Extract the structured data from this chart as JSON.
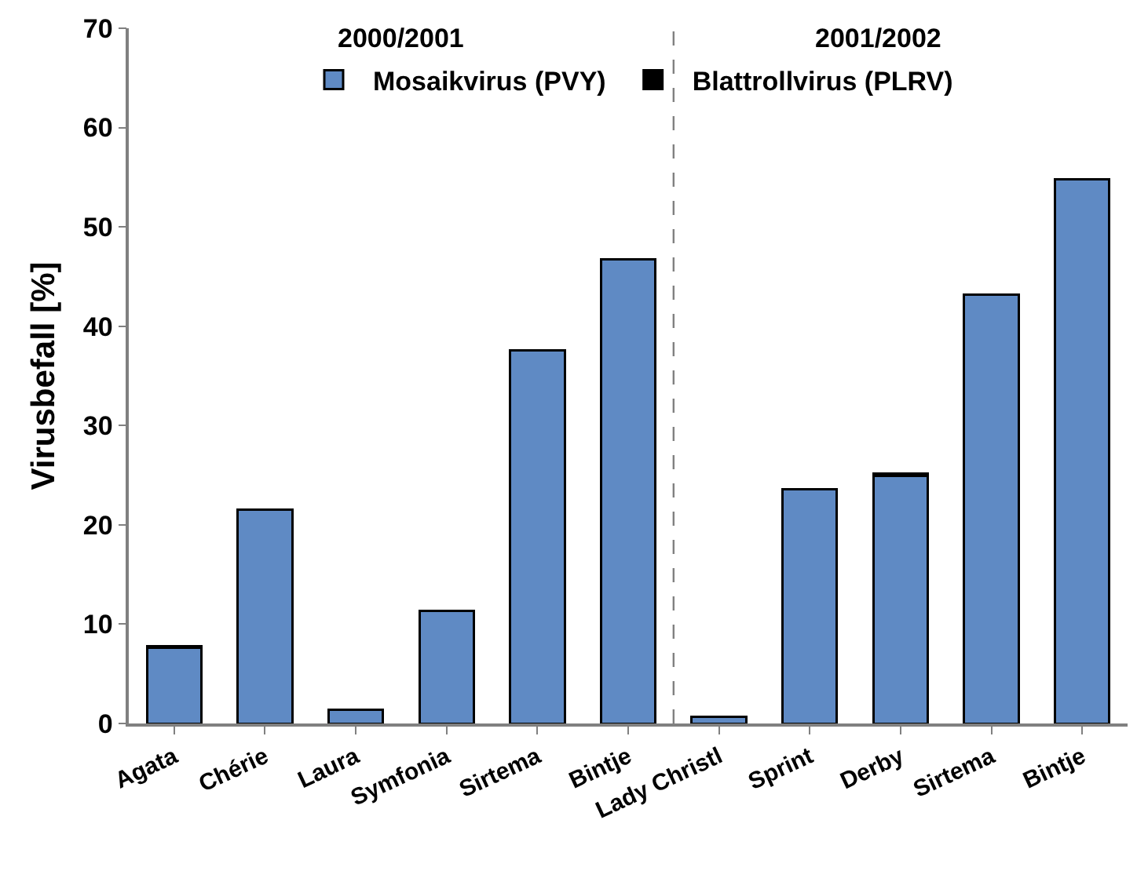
{
  "chart_data": {
    "type": "bar",
    "stacked": true,
    "ylabel": "Virusbefall [%]",
    "categories": [
      "Agata",
      "Chérie",
      "Laura",
      "Symfonia",
      "Sirtema",
      "Bintje",
      "Lady Christl",
      "Sprint",
      "Derby",
      "Sirtema",
      "Bintje"
    ],
    "series": [
      {
        "name": "Mosaikvirus (PVY)",
        "color": "#5f8ac4",
        "values": [
          7.6,
          21.5,
          1.4,
          11.3,
          37.6,
          46.7,
          0.7,
          23.6,
          24.9,
          43.2,
          54.8
        ]
      },
      {
        "name": "Blattrollvirus (PLRV)",
        "color": "#000000",
        "values": [
          0.2,
          0,
          0,
          0,
          0,
          0,
          0,
          0,
          0.3,
          0,
          0
        ]
      }
    ],
    "ylim": [
      0,
      70
    ],
    "yticks": [
      0,
      10,
      20,
      30,
      40,
      50,
      60,
      70
    ],
    "grid": false,
    "legend": "top",
    "annotations": [
      "2000/2001",
      "2001/2002"
    ]
  }
}
